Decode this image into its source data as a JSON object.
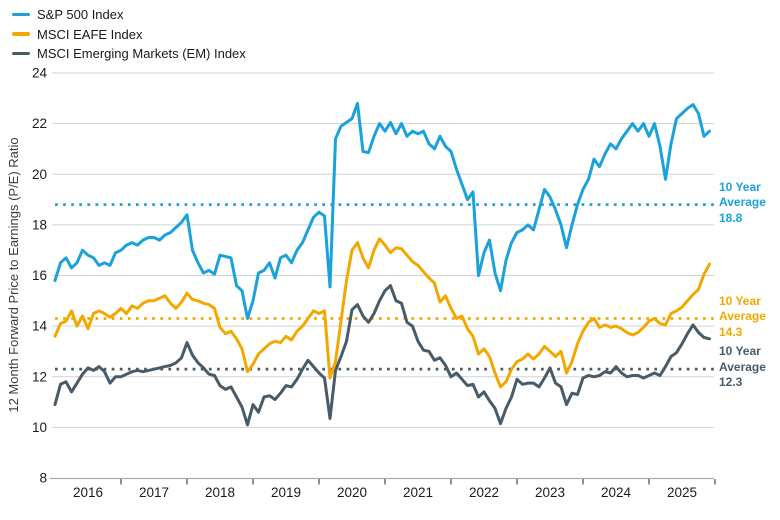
{
  "legend": {
    "items": [
      {
        "label": "S&P 500 Index",
        "color": "#1BA1DB"
      },
      {
        "label": "MSCI EAFE Index",
        "color": "#F2A800"
      },
      {
        "label": "MSCI Emerging Markets (EM) Index",
        "color": "#475B69"
      }
    ]
  },
  "chart_data": {
    "type": "line",
    "title": "",
    "xlabel": "",
    "ylabel": "12 Month Forward Price to Earnings (P/E) Ratio",
    "ylim": [
      8,
      24
    ],
    "yticks": [
      8,
      10,
      12,
      14,
      16,
      18,
      20,
      22,
      24
    ],
    "xtick_labels": [
      "2016",
      "2017",
      "2018",
      "2019",
      "2020",
      "2021",
      "2022",
      "2023",
      "2024",
      "2025"
    ],
    "x_start": "2016-01",
    "x_end": "2025-12",
    "points_per_year": 12,
    "grid": "horizontal",
    "legend_position": "top-left",
    "series": [
      {
        "name": "S&P 500 Index",
        "slug": "sp500",
        "color": "#1BA1DB",
        "values": [
          15.8,
          16.5,
          16.7,
          16.3,
          16.5,
          17.0,
          16.8,
          16.7,
          16.4,
          16.5,
          16.4,
          16.9,
          17.0,
          17.2,
          17.3,
          17.2,
          17.4,
          17.5,
          17.5,
          17.4,
          17.6,
          17.7,
          17.9,
          18.1,
          18.4,
          17.0,
          16.5,
          16.1,
          16.2,
          16.05,
          16.8,
          16.75,
          16.7,
          15.6,
          15.4,
          14.3,
          15.0,
          16.1,
          16.2,
          16.5,
          15.9,
          16.7,
          16.8,
          16.5,
          17.0,
          17.3,
          17.8,
          18.3,
          18.5,
          18.35,
          15.55,
          21.4,
          21.9,
          22.05,
          22.2,
          22.8,
          20.9,
          20.85,
          21.5,
          22.0,
          21.7,
          22.05,
          21.6,
          22.0,
          21.5,
          21.7,
          21.6,
          21.7,
          21.2,
          21.0,
          21.5,
          21.1,
          20.9,
          20.2,
          19.6,
          19.0,
          19.3,
          16.0,
          16.9,
          17.4,
          16.1,
          15.4,
          16.6,
          17.3,
          17.7,
          17.8,
          18.0,
          17.8,
          18.6,
          19.4,
          19.1,
          18.6,
          18.0,
          17.1,
          18.0,
          18.8,
          19.4,
          19.8,
          20.6,
          20.3,
          20.8,
          21.2,
          21.0,
          21.4,
          21.7,
          22.0,
          21.7,
          22.0,
          21.5,
          22.0,
          21.1,
          19.8,
          21.2,
          22.2,
          22.4,
          22.6,
          22.75,
          22.4,
          21.5,
          21.7
        ]
      },
      {
        "name": "MSCI EAFE Index",
        "slug": "msci-eafe",
        "color": "#F2A800",
        "values": [
          13.6,
          14.1,
          14.2,
          14.6,
          14.0,
          14.4,
          13.9,
          14.5,
          14.6,
          14.5,
          14.35,
          14.5,
          14.7,
          14.5,
          14.8,
          14.7,
          14.9,
          15.0,
          15.0,
          15.1,
          15.2,
          14.9,
          14.7,
          14.95,
          15.3,
          15.05,
          15.0,
          14.9,
          14.85,
          14.7,
          13.95,
          13.7,
          13.8,
          13.5,
          13.1,
          12.2,
          12.5,
          12.9,
          13.1,
          13.3,
          13.4,
          13.35,
          13.6,
          13.45,
          13.8,
          14.0,
          14.3,
          14.6,
          14.5,
          14.6,
          11.95,
          12.6,
          14.2,
          15.8,
          17.0,
          17.3,
          16.7,
          16.3,
          17.0,
          17.45,
          17.2,
          16.9,
          17.1,
          17.05,
          16.8,
          16.55,
          16.4,
          16.15,
          15.9,
          15.7,
          14.95,
          15.2,
          14.7,
          14.3,
          14.4,
          13.9,
          13.6,
          12.9,
          13.1,
          12.8,
          12.15,
          11.6,
          11.8,
          12.3,
          12.6,
          12.7,
          12.9,
          12.7,
          12.9,
          13.2,
          13.0,
          12.8,
          13.0,
          12.15,
          12.6,
          13.3,
          13.8,
          14.15,
          14.3,
          13.95,
          14.05,
          13.95,
          14.0,
          13.9,
          13.75,
          13.65,
          13.75,
          13.95,
          14.2,
          14.3,
          14.1,
          14.05,
          14.5,
          14.6,
          14.75,
          15.0,
          15.25,
          15.45,
          16.05,
          16.45
        ]
      },
      {
        "name": "MSCI Emerging Markets (EM) Index",
        "slug": "msci-em",
        "color": "#475B69",
        "values": [
          10.9,
          11.7,
          11.8,
          11.4,
          11.75,
          12.1,
          12.35,
          12.25,
          12.4,
          12.2,
          11.75,
          12.0,
          12.0,
          12.1,
          12.2,
          12.25,
          12.2,
          12.25,
          12.3,
          12.35,
          12.4,
          12.45,
          12.55,
          12.75,
          13.35,
          12.85,
          12.55,
          12.35,
          12.1,
          12.05,
          11.65,
          11.5,
          11.6,
          11.2,
          10.8,
          10.1,
          10.9,
          10.6,
          11.2,
          11.25,
          11.1,
          11.35,
          11.65,
          11.6,
          11.9,
          12.3,
          12.65,
          12.4,
          12.15,
          11.95,
          10.35,
          12.25,
          12.8,
          13.4,
          14.65,
          14.85,
          14.4,
          14.15,
          14.5,
          15.0,
          15.4,
          15.6,
          15.0,
          14.9,
          14.15,
          14.0,
          13.4,
          13.05,
          13.0,
          12.65,
          12.75,
          12.45,
          12.0,
          12.15,
          11.9,
          11.65,
          11.7,
          11.2,
          11.4,
          11.05,
          10.75,
          10.15,
          10.75,
          11.2,
          11.9,
          11.7,
          11.75,
          11.75,
          11.6,
          11.95,
          12.35,
          11.75,
          11.6,
          10.9,
          11.35,
          11.3,
          11.95,
          12.05,
          12.0,
          12.05,
          12.2,
          12.15,
          12.4,
          12.15,
          12.0,
          12.05,
          12.05,
          11.95,
          12.05,
          12.15,
          12.05,
          12.4,
          12.8,
          12.95,
          13.3,
          13.7,
          14.05,
          13.75,
          13.55,
          13.5
        ]
      }
    ],
    "averages": [
      {
        "series": "S&P 500 Index",
        "line1": "10 Year",
        "line2": "Average",
        "value": "18.8",
        "y": 18.8,
        "color": "#1BA1DB"
      },
      {
        "series": "MSCI EAFE Index",
        "line1": "10 Year",
        "line2": "Average",
        "value": "14.3",
        "y": 14.3,
        "color": "#F2A800"
      },
      {
        "series": "MSCI Emerging Markets (EM) Index",
        "line1": "10 Year",
        "line2": "Average",
        "value": "12.3",
        "y": 12.3,
        "color": "#475B69"
      }
    ]
  }
}
